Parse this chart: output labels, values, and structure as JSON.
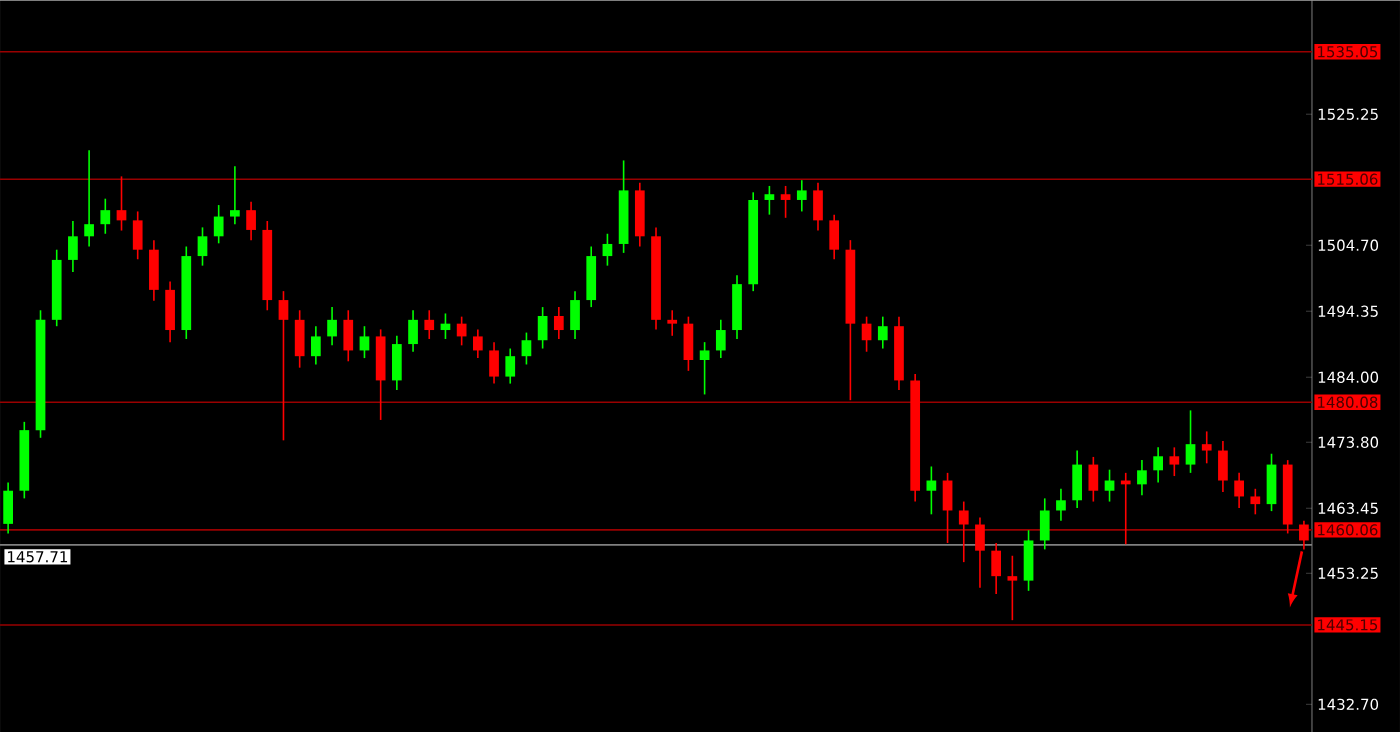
{
  "chart_data": {
    "type": "candlestick",
    "categories": [
      null,
      null,
      null,
      null,
      null,
      null,
      null,
      null,
      null,
      null,
      null,
      null,
      null,
      null,
      null,
      null,
      null,
      null,
      null,
      null,
      null,
      null,
      null,
      null,
      null,
      null,
      null,
      null,
      null,
      null,
      null,
      null,
      null,
      null,
      null,
      null,
      null,
      null,
      null,
      null,
      null,
      null,
      null,
      null,
      null,
      null,
      null,
      null,
      null,
      null,
      null,
      null,
      null,
      null,
      null,
      null,
      null,
      null,
      null,
      null,
      null,
      null,
      null,
      null,
      null,
      null,
      null,
      null,
      null,
      null,
      null,
      null,
      null,
      null,
      null,
      null,
      null,
      null,
      null,
      null,
      null
    ],
    "ohlc": [
      [
        1461.0,
        1467.5,
        1459.5,
        1466.2
      ],
      [
        1466.2,
        1477.0,
        1465.0,
        1475.7
      ],
      [
        1475.7,
        1494.5,
        1474.5,
        1493.0
      ],
      [
        1493.0,
        1504.0,
        1492.0,
        1502.4
      ],
      [
        1502.4,
        1508.5,
        1500.5,
        1506.1
      ],
      [
        1506.1,
        1519.6,
        1504.5,
        1508.0
      ],
      [
        1508.0,
        1512.0,
        1506.5,
        1510.2
      ],
      [
        1510.2,
        1515.5,
        1507.0,
        1508.6
      ],
      [
        1508.6,
        1510.0,
        1502.5,
        1504.0
      ],
      [
        1504.0,
        1505.5,
        1496.0,
        1497.7
      ],
      [
        1497.7,
        1499.0,
        1489.5,
        1491.4
      ],
      [
        1491.4,
        1504.5,
        1490.0,
        1503.0
      ],
      [
        1503.0,
        1507.5,
        1501.5,
        1506.1
      ],
      [
        1506.1,
        1511.0,
        1505.0,
        1509.2
      ],
      [
        1509.2,
        1517.1,
        1508.0,
        1510.2
      ],
      [
        1510.2,
        1511.5,
        1505.5,
        1507.1
      ],
      [
        1507.1,
        1508.5,
        1494.5,
        1496.1
      ],
      [
        1496.1,
        1497.5,
        1474.1,
        1493.0
      ],
      [
        1493.0,
        1494.5,
        1485.5,
        1487.3
      ],
      [
        1487.3,
        1492.0,
        1486.0,
        1490.4
      ],
      [
        1490.4,
        1495.0,
        1489.0,
        1493.0
      ],
      [
        1493.0,
        1494.5,
        1486.5,
        1488.2
      ],
      [
        1488.2,
        1492.0,
        1487.0,
        1490.4
      ],
      [
        1490.4,
        1491.5,
        1477.3,
        1483.5
      ],
      [
        1483.5,
        1490.5,
        1482.0,
        1489.2
      ],
      [
        1489.2,
        1494.5,
        1488.0,
        1493.0
      ],
      [
        1493.0,
        1494.5,
        1490.0,
        1491.4
      ],
      [
        1491.4,
        1494.0,
        1490.0,
        1492.4
      ],
      [
        1492.4,
        1493.5,
        1489.0,
        1490.4
      ],
      [
        1490.4,
        1491.5,
        1487.0,
        1488.2
      ],
      [
        1488.2,
        1489.5,
        1483.0,
        1484.1
      ],
      [
        1484.1,
        1488.5,
        1483.0,
        1487.3
      ],
      [
        1487.3,
        1491.0,
        1486.0,
        1489.8
      ],
      [
        1489.8,
        1495.0,
        1488.5,
        1493.6
      ],
      [
        1493.6,
        1495.0,
        1490.0,
        1491.4
      ],
      [
        1491.4,
        1497.5,
        1490.0,
        1496.1
      ],
      [
        1496.1,
        1504.5,
        1495.0,
        1503.0
      ],
      [
        1503.0,
        1506.5,
        1501.5,
        1504.9
      ],
      [
        1504.9,
        1518.0,
        1503.5,
        1513.3
      ],
      [
        1513.3,
        1514.5,
        1504.5,
        1506.1
      ],
      [
        1506.1,
        1507.5,
        1491.5,
        1493.0
      ],
      [
        1493.0,
        1494.5,
        1490.5,
        1492.4
      ],
      [
        1492.4,
        1493.5,
        1485.0,
        1486.7
      ],
      [
        1486.7,
        1489.5,
        1481.3,
        1488.2
      ],
      [
        1488.2,
        1493.0,
        1487.0,
        1491.4
      ],
      [
        1491.4,
        1500.0,
        1490.0,
        1498.6
      ],
      [
        1498.6,
        1513.0,
        1497.5,
        1511.8
      ],
      [
        1511.8,
        1514.0,
        1509.5,
        1512.7
      ],
      [
        1512.7,
        1514.0,
        1509.0,
        1511.8
      ],
      [
        1511.8,
        1514.9,
        1510.0,
        1513.3
      ],
      [
        1513.3,
        1514.5,
        1507.0,
        1508.6
      ],
      [
        1508.6,
        1509.5,
        1502.5,
        1504.0
      ],
      [
        1504.0,
        1505.5,
        1480.4,
        1492.4
      ],
      [
        1492.4,
        1493.5,
        1488.0,
        1489.8
      ],
      [
        1489.8,
        1493.5,
        1488.5,
        1492.0
      ],
      [
        1492.0,
        1493.5,
        1482.0,
        1483.5
      ],
      [
        1483.5,
        1484.5,
        1464.5,
        1466.2
      ],
      [
        1466.2,
        1470.0,
        1462.5,
        1467.8
      ],
      [
        1467.8,
        1469.0,
        1458.0,
        1463.1
      ],
      [
        1463.1,
        1464.5,
        1455.0,
        1460.9
      ],
      [
        1460.9,
        1462.0,
        1451.0,
        1456.8
      ],
      [
        1456.8,
        1458.0,
        1450.0,
        1452.8
      ],
      [
        1452.8,
        1456.0,
        1445.9,
        1452.1
      ],
      [
        1452.1,
        1460.0,
        1450.5,
        1458.4
      ],
      [
        1458.4,
        1465.0,
        1457.0,
        1463.1
      ],
      [
        1463.1,
        1466.5,
        1461.5,
        1464.7
      ],
      [
        1464.7,
        1472.5,
        1463.5,
        1470.3
      ],
      [
        1470.3,
        1471.5,
        1464.5,
        1466.2
      ],
      [
        1466.2,
        1469.5,
        1464.5,
        1467.8
      ],
      [
        1467.8,
        1469.0,
        1457.8,
        1467.2
      ],
      [
        1467.2,
        1471.0,
        1465.5,
        1469.4
      ],
      [
        1469.4,
        1473.0,
        1467.5,
        1471.6
      ],
      [
        1471.6,
        1473.0,
        1468.5,
        1470.3
      ],
      [
        1470.3,
        1478.8,
        1469.0,
        1473.5
      ],
      [
        1473.5,
        1475.5,
        1470.5,
        1472.5
      ],
      [
        1472.5,
        1474.0,
        1466.0,
        1467.8
      ],
      [
        1467.8,
        1469.0,
        1463.5,
        1465.3
      ],
      [
        1465.3,
        1466.5,
        1462.5,
        1464.1
      ],
      [
        1464.1,
        1472.0,
        1463.0,
        1470.3
      ],
      [
        1470.3,
        1471.0,
        1459.5,
        1460.9
      ],
      [
        1460.9,
        1461.5,
        1457.0,
        1458.4
      ]
    ],
    "ylim": [
      1428.3,
      1543.1
    ],
    "yticks": [
      1525.25,
      {
        "value": 1504.7,
        "label": "1504.70"
      },
      1494.35,
      {
        "value": 1484,
        "label": "1484.00"
      },
      {
        "value": 1473.8,
        "label": "1473.80"
      },
      1463.45,
      1453.25,
      {
        "value": 1432.7,
        "label": "1432.70"
      }
    ],
    "tick_labels": "y",
    "ref_lines": [
      {
        "axis": "y",
        "value": 1535.05,
        "label": "1535.05",
        "color": "#990000"
      },
      {
        "axis": "y",
        "value": 1515.06,
        "label": "1515.06",
        "color": "#990000"
      },
      {
        "axis": "y",
        "value": 1480.08,
        "label": "1480.08",
        "color": "#990000"
      },
      {
        "axis": "y",
        "value": 1460.06,
        "label": "1460.06",
        "color": "#990000"
      },
      {
        "axis": "y",
        "value": 1445.15,
        "label": "1445.15",
        "color": "#990000"
      },
      {
        "axis": "y",
        "value": 1457.71,
        "label": "1457.71",
        "color": "#808080"
      }
    ]
  }
}
